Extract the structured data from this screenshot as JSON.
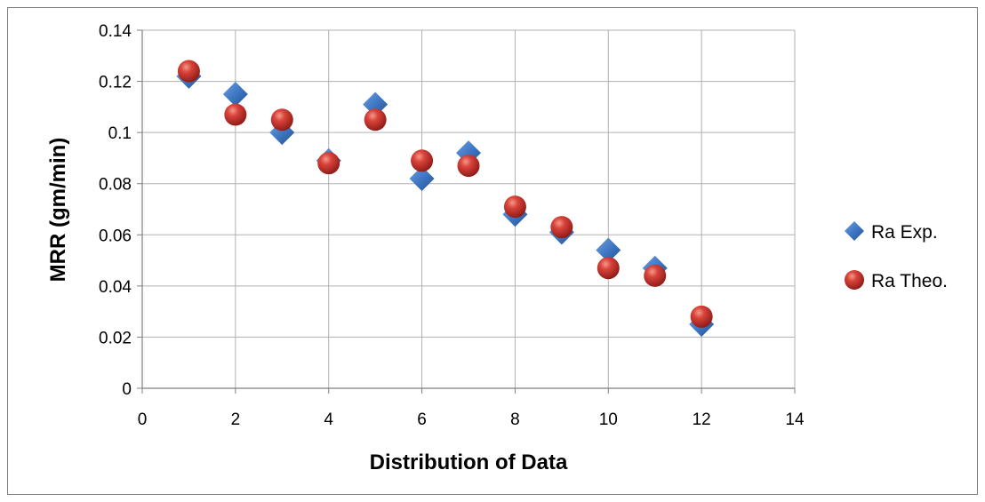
{
  "chart_data": {
    "type": "scatter",
    "xlabel": "Distribution of  Data",
    "ylabel": "MRR (gm/min)",
    "xlim": [
      0,
      14
    ],
    "ylim": [
      0,
      0.14
    ],
    "x_ticks": [
      "0",
      "2",
      "4",
      "6",
      "8",
      "10",
      "12",
      "14"
    ],
    "y_ticks": [
      "0",
      "0.02",
      "0.04",
      "0.06",
      "0.08",
      "0.1",
      "0.12",
      "0.14"
    ],
    "grid": true,
    "legend_position": "right",
    "series": [
      {
        "name": "Ra Exp.",
        "marker": "diamond",
        "color": "#3f77c4",
        "x": [
          1,
          2,
          3,
          4,
          5,
          6,
          7,
          8,
          9,
          10,
          11,
          12
        ],
        "y": [
          0.122,
          0.115,
          0.1,
          0.089,
          0.111,
          0.082,
          0.092,
          0.068,
          0.061,
          0.054,
          0.047,
          0.025
        ]
      },
      {
        "name": "Ra Theo.",
        "marker": "sphere",
        "color": "#c9302c",
        "x": [
          1,
          2,
          3,
          4,
          5,
          6,
          7,
          8,
          9,
          10,
          11,
          12
        ],
        "y": [
          0.124,
          0.107,
          0.105,
          0.088,
          0.105,
          0.089,
          0.087,
          0.071,
          0.063,
          0.047,
          0.044,
          0.028
        ]
      }
    ]
  }
}
